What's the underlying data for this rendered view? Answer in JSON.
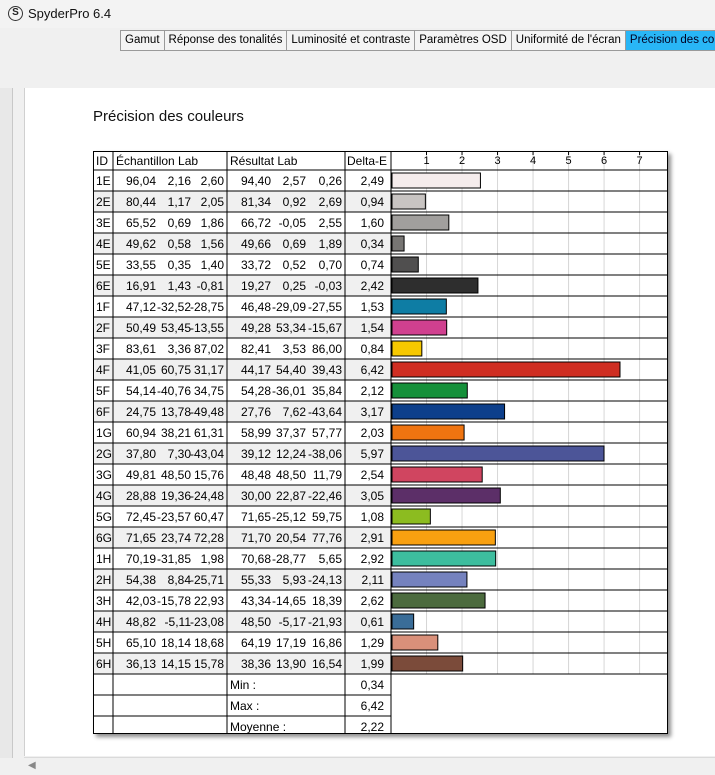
{
  "app": {
    "title": "SpyderPro 6.4",
    "icon_letter": "S"
  },
  "tabs": [
    {
      "label": "Gamut"
    },
    {
      "label": "Réponse des tonalités"
    },
    {
      "label": "Luminosité et contraste"
    },
    {
      "label": "Paramètres OSD"
    },
    {
      "label": "Uniformité de l'écran"
    },
    {
      "label": "Précision des coul",
      "active": true
    }
  ],
  "panel": {
    "title": "Précision des couleurs"
  },
  "table": {
    "headers": {
      "id": "ID",
      "sample": "Échantillon Lab",
      "result": "Résultat Lab",
      "delta": "Delta-E"
    },
    "rows": [
      {
        "id": "1E",
        "s": [
          "96,04",
          "2,16",
          "2,60"
        ],
        "r": [
          "94,40",
          "2,57",
          "0,26"
        ],
        "de": "2,49",
        "v": 2.49,
        "color": "#f5ecec"
      },
      {
        "id": "2E",
        "s": [
          "80,44",
          "1,17",
          "2,05"
        ],
        "r": [
          "81,34",
          "0,92",
          "2,69"
        ],
        "de": "0,94",
        "v": 0.94,
        "color": "#c8c4c2"
      },
      {
        "id": "3E",
        "s": [
          "65,52",
          "0,69",
          "1,86"
        ],
        "r": [
          "66,72",
          "-0,05",
          "2,55"
        ],
        "de": "1,60",
        "v": 1.6,
        "color": "#a19f9d"
      },
      {
        "id": "4E",
        "s": [
          "49,62",
          "0,58",
          "1,56"
        ],
        "r": [
          "49,66",
          "0,69",
          "1,89"
        ],
        "de": "0,34",
        "v": 0.34,
        "color": "#777573"
      },
      {
        "id": "5E",
        "s": [
          "33,55",
          "0,35",
          "1,40"
        ],
        "r": [
          "33,72",
          "0,52",
          "0,70"
        ],
        "de": "0,74",
        "v": 0.74,
        "color": "#504f4f"
      },
      {
        "id": "6E",
        "s": [
          "16,91",
          "1,43",
          "-0,81"
        ],
        "r": [
          "19,27",
          "0,25",
          "-0,03"
        ],
        "de": "2,42",
        "v": 2.42,
        "color": "#2e2e2e"
      },
      {
        "id": "1F",
        "s": [
          "47,12",
          "-32,52",
          "-28,75"
        ],
        "r": [
          "46,48",
          "-29,09",
          "-27,55"
        ],
        "de": "1,53",
        "v": 1.53,
        "color": "#0e7da4"
      },
      {
        "id": "2F",
        "s": [
          "50,49",
          "53,45",
          "-13,55"
        ],
        "r": [
          "49,28",
          "53,34",
          "-15,67"
        ],
        "de": "1,54",
        "v": 1.54,
        "color": "#d0408f"
      },
      {
        "id": "3F",
        "s": [
          "83,61",
          "3,36",
          "87,02"
        ],
        "r": [
          "82,41",
          "3,53",
          "86,00"
        ],
        "de": "0,84",
        "v": 0.84,
        "color": "#f6c800"
      },
      {
        "id": "4F",
        "s": [
          "41,05",
          "60,75",
          "31,17"
        ],
        "r": [
          "44,17",
          "54,40",
          "39,43"
        ],
        "de": "6,42",
        "v": 6.42,
        "color": "#cf2e22"
      },
      {
        "id": "5F",
        "s": [
          "54,14",
          "-40,76",
          "34,75"
        ],
        "r": [
          "54,28",
          "-36,01",
          "35,84"
        ],
        "de": "2,12",
        "v": 2.12,
        "color": "#15903a"
      },
      {
        "id": "6F",
        "s": [
          "24,75",
          "13,78",
          "-49,48"
        ],
        "r": [
          "27,76",
          "7,62",
          "-43,64"
        ],
        "de": "3,17",
        "v": 3.17,
        "color": "#0d3f8b"
      },
      {
        "id": "1G",
        "s": [
          "60,94",
          "38,21",
          "61,31"
        ],
        "r": [
          "58,99",
          "37,37",
          "57,77"
        ],
        "de": "2,03",
        "v": 2.03,
        "color": "#ef7410"
      },
      {
        "id": "2G",
        "s": [
          "37,80",
          "7,30",
          "-43,04"
        ],
        "r": [
          "39,12",
          "12,24",
          "-38,06"
        ],
        "de": "5,97",
        "v": 5.97,
        "color": "#4c5598"
      },
      {
        "id": "3G",
        "s": [
          "49,81",
          "48,50",
          "15,76"
        ],
        "r": [
          "48,48",
          "48,50",
          "11,79"
        ],
        "de": "2,54",
        "v": 2.54,
        "color": "#d04560"
      },
      {
        "id": "4G",
        "s": [
          "28,88",
          "19,36",
          "-24,48"
        ],
        "r": [
          "30,00",
          "22,87",
          "-22,46"
        ],
        "de": "3,05",
        "v": 3.05,
        "color": "#5c2f68"
      },
      {
        "id": "5G",
        "s": [
          "72,45",
          "-23,57",
          "60,47"
        ],
        "r": [
          "71,65",
          "-25,12",
          "59,75"
        ],
        "de": "1,08",
        "v": 1.08,
        "color": "#8cbc20"
      },
      {
        "id": "6G",
        "s": [
          "71,65",
          "23,74",
          "72,28"
        ],
        "r": [
          "71,70",
          "20,54",
          "77,76"
        ],
        "de": "2,91",
        "v": 2.91,
        "color": "#f8a010"
      },
      {
        "id": "1H",
        "s": [
          "70,19",
          "-31,85",
          "1,98"
        ],
        "r": [
          "70,68",
          "-28,77",
          "5,65"
        ],
        "de": "2,92",
        "v": 2.92,
        "color": "#3dbd9e"
      },
      {
        "id": "2H",
        "s": [
          "54,38",
          "8,84",
          "-25,71"
        ],
        "r": [
          "55,33",
          "5,93",
          "-24,13"
        ],
        "de": "2,11",
        "v": 2.11,
        "color": "#7582be"
      },
      {
        "id": "3H",
        "s": [
          "42,03",
          "-15,78",
          "22,93"
        ],
        "r": [
          "43,34",
          "-14,65",
          "18,39"
        ],
        "de": "2,62",
        "v": 2.62,
        "color": "#4c6b3e"
      },
      {
        "id": "4H",
        "s": [
          "48,82",
          "-5,11",
          "-23,08"
        ],
        "r": [
          "48,50",
          "-5,17",
          "-21,93"
        ],
        "de": "0,61",
        "v": 0.61,
        "color": "#3a6d98"
      },
      {
        "id": "5H",
        "s": [
          "65,10",
          "18,14",
          "18,68"
        ],
        "r": [
          "64,19",
          "17,19",
          "16,86"
        ],
        "de": "1,29",
        "v": 1.29,
        "color": "#d9907a"
      },
      {
        "id": "6H",
        "s": [
          "36,13",
          "14,15",
          "15,78"
        ],
        "r": [
          "38,36",
          "13,90",
          "16,54"
        ],
        "de": "1,99",
        "v": 1.99,
        "color": "#7b4b3a"
      }
    ],
    "summary": [
      {
        "label": "Min :",
        "value": "0,34"
      },
      {
        "label": "Max :",
        "value": "6,42"
      },
      {
        "label": "Moyenne :",
        "value": "2,22"
      }
    ]
  },
  "chart_data": {
    "type": "bar",
    "orientation": "horizontal",
    "categories": [
      "1E",
      "2E",
      "3E",
      "4E",
      "5E",
      "6E",
      "1F",
      "2F",
      "3F",
      "4F",
      "5F",
      "6F",
      "1G",
      "2G",
      "3G",
      "4G",
      "5G",
      "6G",
      "1H",
      "2H",
      "3H",
      "4H",
      "5H",
      "6H"
    ],
    "values": [
      2.49,
      0.94,
      1.6,
      0.34,
      0.74,
      2.42,
      1.53,
      1.54,
      0.84,
      6.42,
      2.12,
      3.17,
      2.03,
      5.97,
      2.54,
      3.05,
      1.08,
      2.91,
      2.92,
      2.11,
      2.62,
      0.61,
      1.29,
      1.99
    ],
    "ticks": [
      "1",
      "2",
      "3",
      "4",
      "5",
      "6",
      "7"
    ],
    "xlim": [
      0,
      7.8
    ],
    "grid": true
  }
}
